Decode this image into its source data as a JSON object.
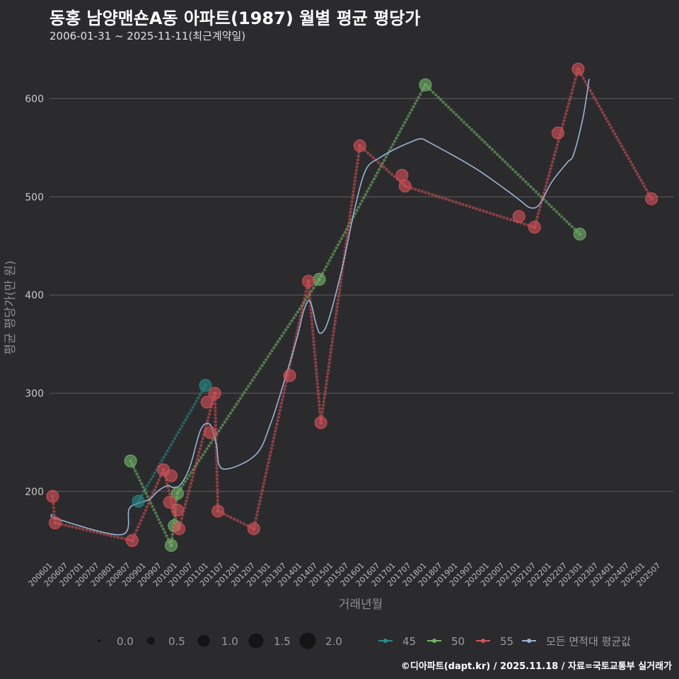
{
  "title": "동홍 남양맨숀A동 아파트(1987) 월별 평균 평당가",
  "subtitle": "2006-01-31 ~ 2025-11-11(최근계약일)",
  "footer": "©디아파트(dapt.kr) / 2025.11.18 / 자료=국토교통부 실거래가",
  "colors": {
    "background": "#2b2b2d",
    "grid": "#5e5e5e",
    "s45": "#2a8c8a",
    "s50": "#74b86a",
    "s55": "#d9525a",
    "avg": "#9bb3d6"
  },
  "chart_data": {
    "type": "scatter",
    "title": "동홍 남양맨숀A동 아파트(1987) 월별 평균 평당가",
    "xlabel": "거래년월",
    "ylabel": "평균 평당가(만 원)",
    "ylim": [
      130,
      650
    ],
    "xlim": [
      2005.9,
      2025.9
    ],
    "yticks": [
      200,
      300,
      400,
      500,
      600
    ],
    "xticks": [
      "200601",
      "200607",
      "200701",
      "200707",
      "200801",
      "200807",
      "200901",
      "200907",
      "201001",
      "201007",
      "201101",
      "201107",
      "201201",
      "201207",
      "201301",
      "201307",
      "201401",
      "201407",
      "201501",
      "201507",
      "201601",
      "201607",
      "201701",
      "201707",
      "201801",
      "201807",
      "201901",
      "201907",
      "202001",
      "202007",
      "202101",
      "202107",
      "202201",
      "202207",
      "202301",
      "202307",
      "202401",
      "202407",
      "202501",
      "202507"
    ],
    "size_legend": [
      "0.0",
      "0.5",
      "1.0",
      "1.5",
      "2.0"
    ],
    "series": [
      {
        "name": "45",
        "color": "#2a8c8a",
        "points": [
          [
            2008.75,
            190
          ],
          [
            2010.9,
            308
          ]
        ]
      },
      {
        "name": "50",
        "color": "#74b86a",
        "points": [
          [
            2008.5,
            231
          ],
          [
            2009.8,
            145
          ],
          [
            2010.0,
            198
          ],
          [
            2009.9,
            165
          ],
          [
            2014.55,
            416
          ],
          [
            2017.95,
            614
          ],
          [
            2022.9,
            462
          ]
        ]
      },
      {
        "name": "55",
        "color": "#d9525a",
        "points": [
          [
            2006.0,
            195
          ],
          [
            2006.08,
            168
          ],
          [
            2008.55,
            150
          ],
          [
            2009.55,
            222
          ],
          [
            2009.75,
            189
          ],
          [
            2009.8,
            216
          ],
          [
            2010.0,
            181
          ],
          [
            2010.05,
            162
          ],
          [
            2010.95,
            291
          ],
          [
            2011.05,
            260
          ],
          [
            2011.2,
            300
          ],
          [
            2011.3,
            180
          ],
          [
            2012.45,
            162
          ],
          [
            2013.6,
            318
          ],
          [
            2014.2,
            414
          ],
          [
            2014.6,
            270
          ],
          [
            2015.85,
            552
          ],
          [
            2017.2,
            522
          ],
          [
            2017.3,
            511
          ],
          [
            2020.95,
            480
          ],
          [
            2021.45,
            469
          ],
          [
            2022.2,
            565
          ],
          [
            2022.85,
            630
          ],
          [
            2025.2,
            498
          ]
        ]
      },
      {
        "name": "모든 면적대 평균값",
        "color": "#9bb3d6",
        "points": [
          [
            2006.0,
            177
          ],
          [
            2006.15,
            172
          ],
          [
            2008.2,
            156
          ],
          [
            2008.45,
            182
          ],
          [
            2008.75,
            188
          ],
          [
            2009.1,
            192
          ],
          [
            2009.4,
            201
          ],
          [
            2009.7,
            206
          ],
          [
            2009.85,
            204
          ],
          [
            2010.1,
            207
          ],
          [
            2010.4,
            225
          ],
          [
            2010.75,
            263
          ],
          [
            2011.05,
            268
          ],
          [
            2011.25,
            248
          ],
          [
            2011.45,
            223
          ],
          [
            2012.5,
            237
          ],
          [
            2013.0,
            270
          ],
          [
            2013.5,
            320
          ],
          [
            2013.85,
            358
          ],
          [
            2014.05,
            384
          ],
          [
            2014.25,
            394
          ],
          [
            2014.45,
            370
          ],
          [
            2014.6,
            361
          ],
          [
            2014.85,
            375
          ],
          [
            2015.3,
            430
          ],
          [
            2015.7,
            490
          ],
          [
            2016.05,
            528
          ],
          [
            2016.5,
            540
          ],
          [
            2017.0,
            549
          ],
          [
            2017.5,
            556
          ],
          [
            2017.8,
            559
          ],
          [
            2018.1,
            555
          ],
          [
            2019.5,
            530
          ],
          [
            2020.5,
            508
          ],
          [
            2021.0,
            496
          ],
          [
            2021.3,
            489
          ],
          [
            2021.6,
            492
          ],
          [
            2022.0,
            515
          ],
          [
            2022.5,
            535
          ],
          [
            2022.7,
            543
          ],
          [
            2023.0,
            580
          ],
          [
            2023.2,
            620
          ]
        ]
      }
    ],
    "connections": [
      {
        "series": "45",
        "style": "dotted",
        "from": [
          2008.75,
          190
        ],
        "to": [
          2010.9,
          308
        ]
      },
      {
        "series": "50",
        "style": "dotted",
        "from": [
          2008.5,
          231
        ],
        "to": [
          2009.8,
          145
        ]
      },
      {
        "series": "50",
        "style": "dotted",
        "from": [
          2009.8,
          145
        ],
        "to": [
          2010.0,
          198
        ]
      },
      {
        "series": "50",
        "style": "dotted",
        "from": [
          2010.0,
          198
        ],
        "to": [
          2014.55,
          416
        ]
      },
      {
        "series": "50",
        "style": "dotted",
        "from": [
          2014.55,
          416
        ],
        "to": [
          2017.95,
          614
        ]
      },
      {
        "series": "50",
        "style": "dotted",
        "from": [
          2017.95,
          614
        ],
        "to": [
          2022.9,
          462
        ]
      },
      {
        "series": "55",
        "style": "dotted",
        "from": [
          2006.0,
          195
        ],
        "to": [
          2006.08,
          168
        ]
      },
      {
        "series": "55",
        "style": "dotted",
        "from": [
          2006.08,
          168
        ],
        "to": [
          2008.55,
          150
        ]
      },
      {
        "series": "55",
        "style": "dotted",
        "from": [
          2008.55,
          150
        ],
        "to": [
          2009.55,
          222
        ]
      },
      {
        "series": "55",
        "style": "dotted",
        "from": [
          2009.55,
          222
        ],
        "to": [
          2010.05,
          162
        ]
      },
      {
        "series": "55",
        "style": "dotted",
        "from": [
          2010.05,
          162
        ],
        "to": [
          2011.2,
          300
        ]
      },
      {
        "series": "55",
        "style": "dotted",
        "from": [
          2011.2,
          300
        ],
        "to": [
          2011.3,
          180
        ]
      },
      {
        "series": "55",
        "style": "dotted",
        "from": [
          2011.3,
          180
        ],
        "to": [
          2012.45,
          162
        ]
      },
      {
        "series": "55",
        "style": "dotted",
        "from": [
          2012.45,
          162
        ],
        "to": [
          2014.2,
          414
        ]
      },
      {
        "series": "55",
        "style": "dotted",
        "from": [
          2014.2,
          414
        ],
        "to": [
          2014.6,
          270
        ]
      },
      {
        "series": "55",
        "style": "dotted",
        "from": [
          2014.6,
          270
        ],
        "to": [
          2015.85,
          552
        ]
      },
      {
        "series": "55",
        "style": "dotted",
        "from": [
          2015.85,
          552
        ],
        "to": [
          2017.3,
          511
        ]
      },
      {
        "series": "55",
        "style": "dotted",
        "from": [
          2017.3,
          511
        ],
        "to": [
          2021.45,
          469
        ]
      },
      {
        "series": "55",
        "style": "dotted",
        "from": [
          2021.45,
          469
        ],
        "to": [
          2022.85,
          630
        ]
      },
      {
        "series": "55",
        "style": "dotted",
        "from": [
          2022.85,
          630
        ],
        "to": [
          2025.2,
          498
        ]
      }
    ]
  }
}
